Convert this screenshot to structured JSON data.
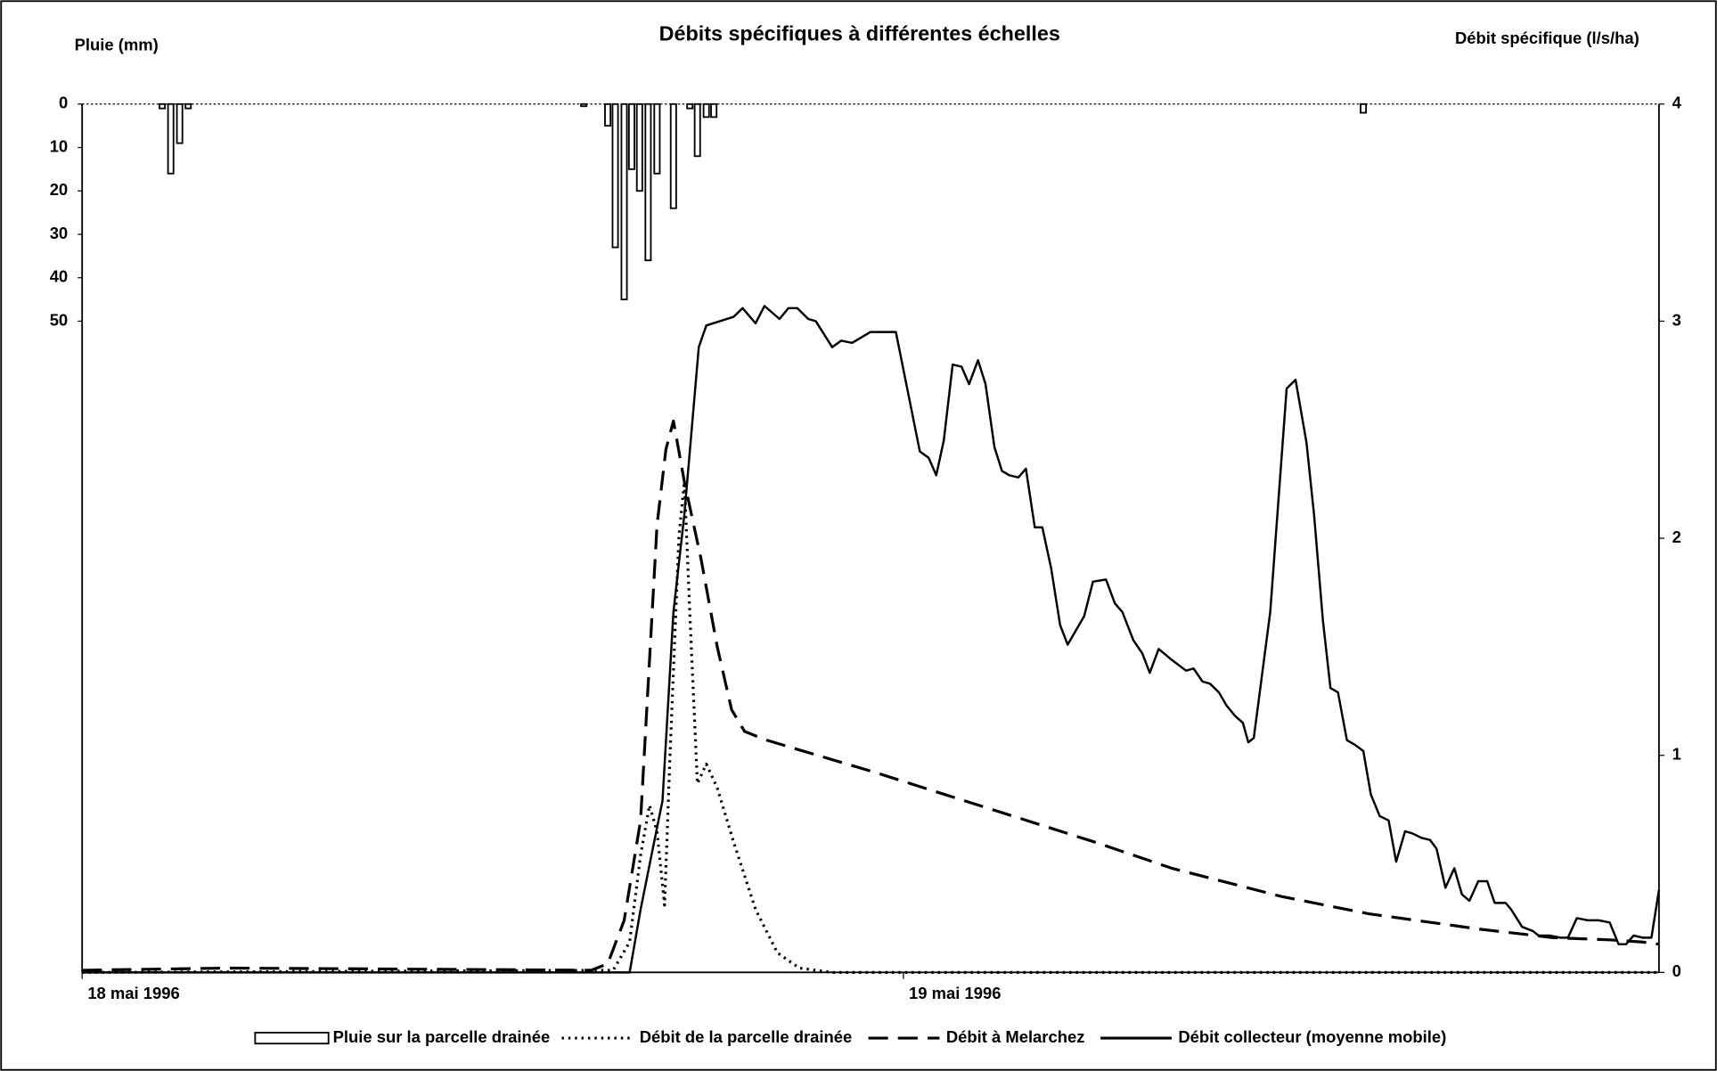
{
  "chart_data": {
    "type": "rain-flow",
    "title": "Débits spécifiques à différentes échelles",
    "y_label": "Pluie (mm)",
    "y2_label": "Débit spécifique (l/s/ha)",
    "xlim": [
      0,
      46.08
    ],
    "xticks": [
      {
        "value": 0,
        "label": "18 mai 1996"
      },
      {
        "value": 24,
        "label": "19 mai 1996"
      }
    ],
    "ylim": [
      200,
      0
    ],
    "yticks": [
      0,
      10,
      20,
      30,
      40,
      50
    ],
    "y2lim": [
      0,
      4
    ],
    "y2ticks": [
      0,
      1,
      2,
      3,
      4
    ],
    "series": [
      {
        "name": "Pluie sur la parcelle drainée",
        "kind": "bar",
        "axis": "y",
        "color": "#000000",
        "x": [
          2.34,
          2.59,
          2.85,
          3.1,
          14.66,
          15.36,
          15.58,
          15.84,
          16.06,
          16.29,
          16.54,
          16.8,
          17.28,
          17.76,
          17.98,
          18.24,
          18.46,
          37.44
        ],
        "values": [
          1,
          16,
          9,
          1,
          0.5,
          5,
          33,
          45,
          15,
          20,
          36,
          16,
          24,
          1,
          12,
          3,
          3,
          2
        ]
      },
      {
        "name": "Débit de la parcelle drainée",
        "kind": "line",
        "line_style": "dotted",
        "axis": "y2",
        "color": "#000000",
        "x": [
          0,
          15.52,
          16.0,
          16.32,
          16.58,
          16.8,
          17.02,
          17.18,
          17.44,
          17.6,
          17.76,
          17.98,
          18.24,
          18.56,
          19.04,
          19.68,
          20.32,
          20.96,
          21.92,
          46.08
        ],
        "values": [
          0,
          0.01,
          0.14,
          0.54,
          0.77,
          0.65,
          0.31,
          1.0,
          2.01,
          2.26,
          1.65,
          0.87,
          0.96,
          0.85,
          0.6,
          0.29,
          0.09,
          0.02,
          0,
          0
        ]
      },
      {
        "name": "Débit à Melarchez",
        "kind": "line",
        "line_style": "dashed",
        "axis": "y2",
        "color": "#000000",
        "x": [
          0,
          4.32,
          14.88,
          15.36,
          15.84,
          16.32,
          16.8,
          17.06,
          17.28,
          17.6,
          18.08,
          18.56,
          18.98,
          19.36,
          20.0,
          23.2,
          26.4,
          29.6,
          31.84,
          35.04,
          37.6,
          40.8,
          43.0,
          44.64,
          45.6,
          46.08
        ],
        "values": [
          0.01,
          0.02,
          0.01,
          0.04,
          0.24,
          0.7,
          2.06,
          2.41,
          2.54,
          2.26,
          1.91,
          1.5,
          1.21,
          1.11,
          1.07,
          0.92,
          0.76,
          0.6,
          0.48,
          0.35,
          0.27,
          0.2,
          0.16,
          0.15,
          0.14,
          0.13
        ]
      },
      {
        "name": "Débit collecteur (moyenne mobile)",
        "kind": "line",
        "line_style": "solid",
        "axis": "y2",
        "color": "#000000",
        "x": [
          0,
          16.0,
          16.32,
          16.74,
          16.96,
          17.28,
          17.6,
          18.02,
          18.24,
          19.04,
          19.3,
          19.68,
          19.94,
          20.38,
          20.64,
          20.9,
          21.22,
          21.44,
          21.92,
          22.18,
          22.5,
          23.04,
          23.78,
          24.48,
          24.74,
          24.96,
          25.18,
          25.44,
          25.7,
          25.92,
          26.18,
          26.4,
          26.66,
          26.88,
          27.1,
          27.36,
          27.58,
          27.84,
          28.06,
          28.32,
          28.58,
          28.8,
          29.28,
          29.54,
          29.92,
          30.18,
          30.4,
          30.72,
          30.98,
          31.2,
          31.46,
          31.84,
          32.26,
          32.48,
          32.74,
          32.96,
          33.22,
          33.44,
          33.7,
          33.92,
          34.08,
          34.24,
          34.72,
          35.2,
          35.46,
          35.78,
          36.0,
          36.26,
          36.48,
          36.7,
          36.96,
          37.18,
          37.44,
          37.66,
          37.92,
          38.18,
          38.4,
          38.66,
          38.88,
          39.14,
          39.39,
          39.58,
          39.84,
          40.1,
          40.32,
          40.54,
          40.8,
          41.06,
          41.28,
          41.6,
          41.76,
          42.08,
          42.4,
          42.56,
          42.88,
          43.2,
          43.42,
          43.68,
          44.0,
          44.32,
          44.64,
          44.9,
          45.12,
          45.34,
          45.6,
          45.86,
          46.08
        ],
        "values": [
          0,
          0,
          0.29,
          0.62,
          0.79,
          1.66,
          2.11,
          2.88,
          2.98,
          3.02,
          3.06,
          2.99,
          3.07,
          3.01,
          3.06,
          3.06,
          3.01,
          3.0,
          2.88,
          2.91,
          2.9,
          2.95,
          2.95,
          2.4,
          2.37,
          2.29,
          2.45,
          2.8,
          2.79,
          2.71,
          2.82,
          2.71,
          2.42,
          2.31,
          2.29,
          2.28,
          2.32,
          2.05,
          2.05,
          1.86,
          1.6,
          1.51,
          1.64,
          1.8,
          1.81,
          1.7,
          1.66,
          1.53,
          1.47,
          1.38,
          1.49,
          1.44,
          1.39,
          1.4,
          1.34,
          1.33,
          1.29,
          1.23,
          1.18,
          1.15,
          1.06,
          1.08,
          1.66,
          2.69,
          2.73,
          2.44,
          2.11,
          1.62,
          1.31,
          1.29,
          1.07,
          1.05,
          1.02,
          0.82,
          0.72,
          0.7,
          0.51,
          0.65,
          0.64,
          0.62,
          0.61,
          0.57,
          0.39,
          0.48,
          0.36,
          0.33,
          0.42,
          0.42,
          0.32,
          0.32,
          0.29,
          0.21,
          0.19,
          0.17,
          0.17,
          0.16,
          0.16,
          0.25,
          0.24,
          0.24,
          0.23,
          0.13,
          0.13,
          0.17,
          0.16,
          0.16,
          0.38
        ]
      }
    ]
  }
}
